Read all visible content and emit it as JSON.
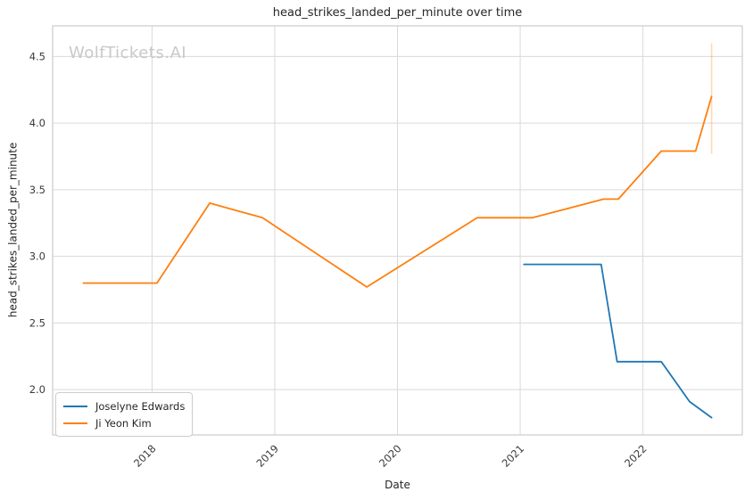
{
  "watermark": "WolfTickets.AI",
  "colors": {
    "background": "#ffffff",
    "grid": "#d9d9d9",
    "axis_border": "#cccccc",
    "title_text": "#262626",
    "tick_text": "#3b3b3b",
    "watermark": "#c9c9c9",
    "series_blue": "#1f77b4",
    "series_orange": "#ff7f0e"
  },
  "chart_data": {
    "type": "line",
    "title": "head_strikes_landed_per_minute over time",
    "xlabel": "Date",
    "ylabel": "head_strikes_landed_per_minute",
    "x_unit": "decimal_year",
    "grid": true,
    "legend_position": "lower-left",
    "xlim": [
      2017.19,
      2022.81
    ],
    "ylim": [
      1.66,
      4.73
    ],
    "x_ticks": [
      {
        "label": "2018",
        "value": 2018
      },
      {
        "label": "2019",
        "value": 2019
      },
      {
        "label": "2020",
        "value": 2020
      },
      {
        "label": "2021",
        "value": 2021
      },
      {
        "label": "2022",
        "value": 2022
      }
    ],
    "y_ticks": [
      {
        "label": "2.0",
        "value": 2.0
      },
      {
        "label": "2.5",
        "value": 2.5
      },
      {
        "label": "3.0",
        "value": 3.0
      },
      {
        "label": "3.5",
        "value": 3.5
      },
      {
        "label": "4.0",
        "value": 4.0
      },
      {
        "label": "4.5",
        "value": 4.5
      }
    ],
    "series": [
      {
        "name": "Joselyne Edwards",
        "color": "#1f77b4",
        "points": [
          [
            2021.03,
            2.94
          ],
          [
            2021.66,
            2.94
          ],
          [
            2021.79,
            2.21
          ],
          [
            2022.15,
            2.21
          ],
          [
            2022.38,
            1.91
          ],
          [
            2022.56,
            1.79
          ]
        ]
      },
      {
        "name": "Ji Yeon Kim",
        "color": "#ff7f0e",
        "points": [
          [
            2017.44,
            2.8
          ],
          [
            2018.04,
            2.8
          ],
          [
            2018.47,
            3.4
          ],
          [
            2018.9,
            3.29
          ],
          [
            2019.75,
            2.77
          ],
          [
            2020.65,
            3.29
          ],
          [
            2021.1,
            3.29
          ],
          [
            2021.68,
            3.43
          ],
          [
            2021.8,
            3.43
          ],
          [
            2022.15,
            3.79
          ],
          [
            2022.43,
            3.79
          ],
          [
            2022.56,
            4.2
          ]
        ]
      }
    ],
    "error_bar": {
      "series": "Ji Yeon Kim",
      "x": 2022.56,
      "y_low": 3.77,
      "y_high": 4.6,
      "color": "rgba(255,127,14,0.3)"
    }
  }
}
